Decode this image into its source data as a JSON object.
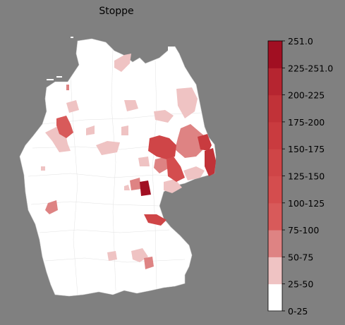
{
  "title": "Stoppe",
  "colorbar": {
    "max_label": "251.0",
    "labels": [
      "225-251.0",
      "200-225",
      "175-200",
      "150-175",
      "125-150",
      "100-125",
      "75-100",
      "50-75",
      "25-50",
      "0-25"
    ],
    "bins": [
      {
        "label": "0-25",
        "color": "#ffffff"
      },
      {
        "label": "25-50",
        "color": "#efc3c3"
      },
      {
        "label": "50-75",
        "color": "#de8383"
      },
      {
        "label": "75-100",
        "color": "#d85a5a"
      },
      {
        "label": "100-125",
        "color": "#d44d4e"
      },
      {
        "label": "125-150",
        "color": "#cf4547"
      },
      {
        "label": "150-175",
        "color": "#c93b3f"
      },
      {
        "label": "175-200",
        "color": "#c13238"
      },
      {
        "label": "200-225",
        "color": "#b62530"
      },
      {
        "label": "225-251.0",
        "color": "#a10f22"
      }
    ]
  }
}
